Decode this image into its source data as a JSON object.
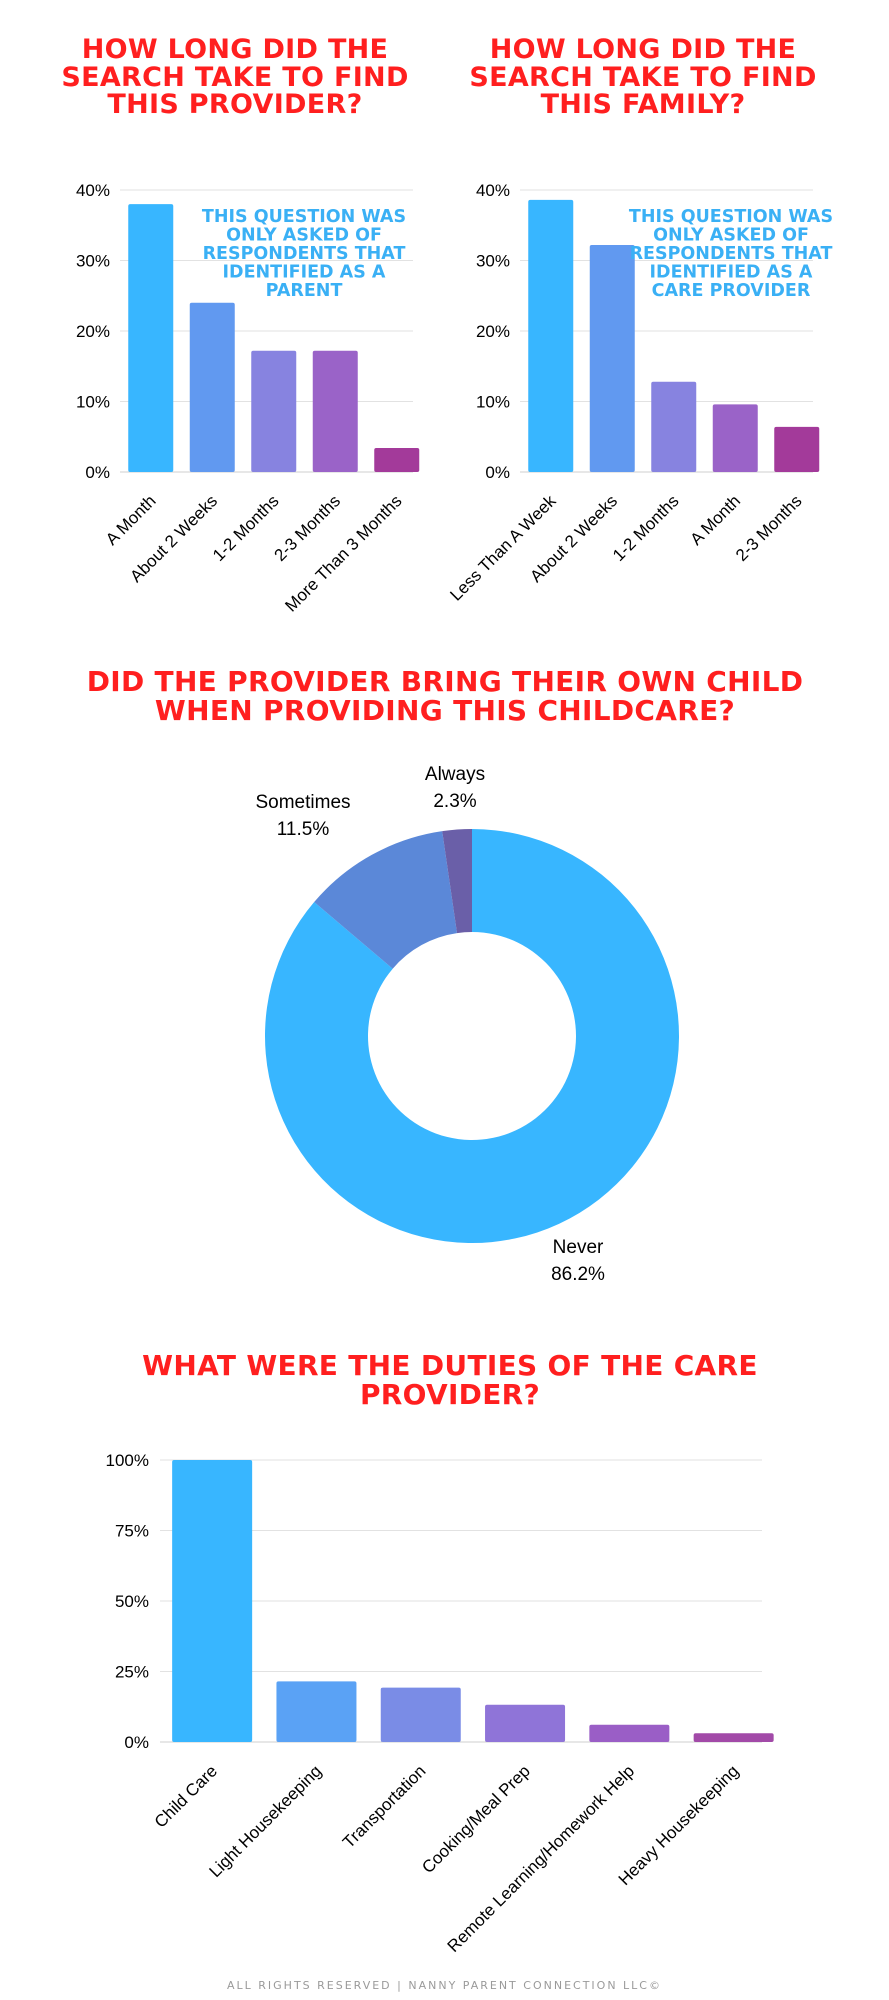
{
  "titles": {
    "provider": "HOW LONG DID THE SEARCH TAKE TO FIND THIS PROVIDER?",
    "family": "HOW LONG DID THE SEARCH TAKE TO FIND THIS FAMILY?",
    "own_child": "DID THE PROVIDER BRING THEIR OWN CHILD WHEN PROVIDING THIS CHILDCARE?",
    "duties": "WHAT WERE THE DUTIES OF THE CARE PROVIDER?"
  },
  "footer": "ALL RIGHTS RESERVED | NANNY PARENT CONNECTION LLC©",
  "chart_data": [
    {
      "id": "provider_search",
      "type": "bar",
      "categories": [
        "A Month",
        "About 2 Weeks",
        "1-2 Months",
        "2-3 Months",
        "More Than 3 Months"
      ],
      "values": [
        38,
        24,
        17.2,
        17.2,
        3.4
      ],
      "yticks": [
        "0%",
        "10%",
        "20%",
        "30%",
        "40%"
      ],
      "ylim": [
        0,
        40
      ],
      "grid": true,
      "colors": [
        "#38b6ff",
        "#6199f0",
        "#8783e0",
        "#9a63c8",
        "#a33a9a"
      ],
      "annotation": "THIS QUESTION WAS ONLY ASKED OF RESPONDENTS THAT IDENTIFIED AS A PARENT",
      "annotation_lines": [
        "THIS QUESTION WAS",
        "ONLY ASKED OF",
        "RESPONDENTS THAT",
        "IDENTIFIED AS A",
        "PARENT"
      ]
    },
    {
      "id": "family_search",
      "type": "bar",
      "categories": [
        "Less Than A Week",
        "About 2 Weeks",
        "1-2 Months",
        "A Month",
        "2-3 Months"
      ],
      "values": [
        38.6,
        32.2,
        12.8,
        9.6,
        6.4
      ],
      "yticks": [
        "0%",
        "10%",
        "20%",
        "30%",
        "40%"
      ],
      "ylim": [
        0,
        40
      ],
      "grid": true,
      "colors": [
        "#38b6ff",
        "#6199f0",
        "#8783e0",
        "#9a63c8",
        "#a33a9a"
      ],
      "annotation": "THIS QUESTION WAS ONLY ASKED OF RESPONDENTS THAT IDENTIFIED AS A CARE PROVIDER",
      "annotation_lines": [
        "THIS QUESTION WAS",
        "ONLY ASKED OF",
        "RESPONDENTS THAT",
        "IDENTIFIED AS A",
        "CARE PROVIDER"
      ]
    },
    {
      "id": "own_child",
      "type": "pie",
      "donut": true,
      "slices": [
        {
          "label": "Never",
          "value": 86.2,
          "display": "86.2%",
          "color": "#38b6ff"
        },
        {
          "label": "Sometimes",
          "value": 11.5,
          "display": "11.5%",
          "color": "#5b88d8"
        },
        {
          "label": "Always",
          "value": 2.3,
          "display": "2.3%",
          "color": "#6a5fa8"
        }
      ]
    },
    {
      "id": "duties",
      "type": "bar",
      "categories": [
        "Child Care",
        "Light Housekeeping",
        "Transportation",
        "Cooking/Meal Prep",
        "Remote Learning/Homework Help",
        "Heavy Housekeeping"
      ],
      "values": [
        100,
        21.5,
        19.3,
        13.2,
        6.1,
        3.1
      ],
      "yticks": [
        "0%",
        "25%",
        "50%",
        "75%",
        "100%"
      ],
      "ylim": [
        0,
        100
      ],
      "grid": true,
      "colors": [
        "#38b6ff",
        "#5aa2f5",
        "#7a8ce6",
        "#8f74d8",
        "#9a5ec6",
        "#a24aa8"
      ]
    }
  ]
}
